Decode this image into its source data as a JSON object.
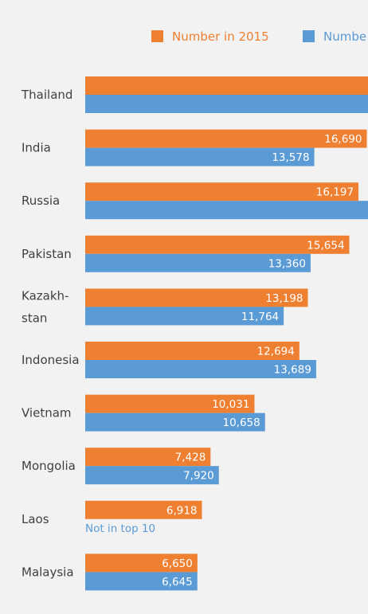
{
  "chart_data": {
    "type": "bar",
    "orientation": "horizontal",
    "legend_position": "top",
    "grid": false,
    "colors": {
      "series_2015": "#ef8032",
      "series_b": "#5b9bd5",
      "background": "#f2f2f2",
      "label": "#404040"
    },
    "categories": [
      "Thailand",
      "India",
      "Russia",
      "Pakistan",
      "Kazakh-\nstan",
      "Indonesia",
      "Vietnam",
      "Mongolia",
      "Laos",
      "Malaysia"
    ],
    "series": [
      {
        "name": "Number in 2015",
        "values": [
          null,
          16690,
          16197,
          15654,
          13198,
          12694,
          10031,
          7428,
          6918,
          6650
        ]
      },
      {
        "name": "Numbe",
        "values": [
          null,
          13578,
          null,
          13360,
          11764,
          13689,
          10658,
          7920,
          null,
          6645
        ]
      }
    ],
    "annotations": [
      {
        "category": "Laos",
        "series": "Numbe",
        "text": "Not in top 10"
      }
    ]
  }
}
